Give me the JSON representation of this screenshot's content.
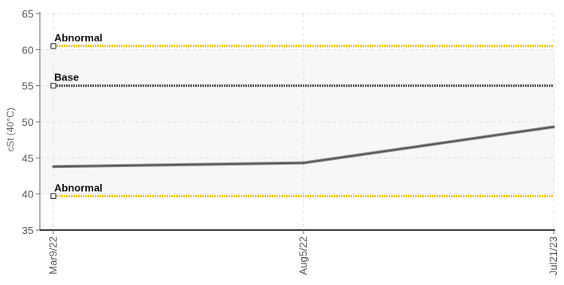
{
  "chart_data": {
    "type": "line",
    "ylabel": "cSt (40°C)",
    "xlabel": "",
    "ylim": [
      35,
      65
    ],
    "y_ticks": [
      35,
      40,
      45,
      50,
      55,
      60,
      65
    ],
    "categories": [
      "Mar9/22",
      "Aug5/22",
      "Jul21/23"
    ],
    "series": [
      {
        "values": [
          43.8,
          44.3,
          49.3
        ],
        "color": "#555555"
      }
    ],
    "reference_lines": [
      {
        "label": "Abnormal",
        "value": 60.5,
        "color": "#f5c518",
        "style": "dotted"
      },
      {
        "label": "Base",
        "value": 55,
        "color": "#555555",
        "style": "dotted"
      },
      {
        "label": "Abnormal",
        "value": 39.7,
        "color": "#f5c518",
        "style": "dotted"
      }
    ],
    "grid": true,
    "bands": [
      {
        "from": 40,
        "to": 60,
        "color": "#f7f7f7"
      }
    ]
  }
}
